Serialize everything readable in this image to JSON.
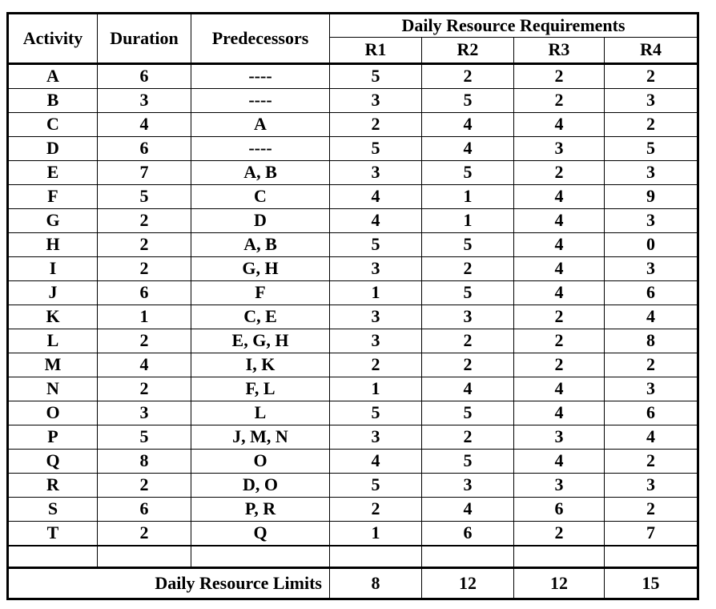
{
  "table": {
    "headers": {
      "activity": "Activity",
      "duration": "Duration",
      "predecessors": "Predecessors",
      "resource_group": "Daily Resource Requirements",
      "resources": [
        "R1",
        "R2",
        "R3",
        "R4"
      ]
    },
    "rows": [
      {
        "activity": "A",
        "duration": "6",
        "predecessors": "----",
        "r": [
          "5",
          "2",
          "2",
          "2"
        ]
      },
      {
        "activity": "B",
        "duration": "3",
        "predecessors": "----",
        "r": [
          "3",
          "5",
          "2",
          "3"
        ]
      },
      {
        "activity": "C",
        "duration": "4",
        "predecessors": "A",
        "r": [
          "2",
          "4",
          "4",
          "2"
        ]
      },
      {
        "activity": "D",
        "duration": "6",
        "predecessors": "----",
        "r": [
          "5",
          "4",
          "3",
          "5"
        ]
      },
      {
        "activity": "E",
        "duration": "7",
        "predecessors": "A, B",
        "r": [
          "3",
          "5",
          "2",
          "3"
        ]
      },
      {
        "activity": "F",
        "duration": "5",
        "predecessors": "C",
        "r": [
          "4",
          "1",
          "4",
          "9"
        ]
      },
      {
        "activity": "G",
        "duration": "2",
        "predecessors": "D",
        "r": [
          "4",
          "1",
          "4",
          "3"
        ]
      },
      {
        "activity": "H",
        "duration": "2",
        "predecessors": "A, B",
        "r": [
          "5",
          "5",
          "4",
          "0"
        ]
      },
      {
        "activity": "I",
        "duration": "2",
        "predecessors": "G, H",
        "r": [
          "3",
          "2",
          "4",
          "3"
        ]
      },
      {
        "activity": "J",
        "duration": "6",
        "predecessors": "F",
        "r": [
          "1",
          "5",
          "4",
          "6"
        ]
      },
      {
        "activity": "K",
        "duration": "1",
        "predecessors": "C, E",
        "r": [
          "3",
          "3",
          "2",
          "4"
        ]
      },
      {
        "activity": "L",
        "duration": "2",
        "predecessors": "E, G, H",
        "r": [
          "3",
          "2",
          "2",
          "8"
        ]
      },
      {
        "activity": "M",
        "duration": "4",
        "predecessors": "I, K",
        "r": [
          "2",
          "2",
          "2",
          "2"
        ]
      },
      {
        "activity": "N",
        "duration": "2",
        "predecessors": "F, L",
        "r": [
          "1",
          "4",
          "4",
          "3"
        ]
      },
      {
        "activity": "O",
        "duration": "3",
        "predecessors": "L",
        "r": [
          "5",
          "5",
          "4",
          "6"
        ]
      },
      {
        "activity": "P",
        "duration": "5",
        "predecessors": "J, M, N",
        "r": [
          "3",
          "2",
          "3",
          "4"
        ]
      },
      {
        "activity": "Q",
        "duration": "8",
        "predecessors": "O",
        "r": [
          "4",
          "5",
          "4",
          "2"
        ]
      },
      {
        "activity": "R",
        "duration": "2",
        "predecessors": "D, O",
        "r": [
          "5",
          "3",
          "3",
          "3"
        ]
      },
      {
        "activity": "S",
        "duration": "6",
        "predecessors": "P, R",
        "r": [
          "2",
          "4",
          "6",
          "2"
        ]
      },
      {
        "activity": "T",
        "duration": "2",
        "predecessors": "Q",
        "r": [
          "1",
          "6",
          "2",
          "7"
        ]
      }
    ],
    "footer": {
      "limits_label": "Daily Resource Limits",
      "limits": [
        "8",
        "12",
        "12",
        "15"
      ]
    }
  }
}
